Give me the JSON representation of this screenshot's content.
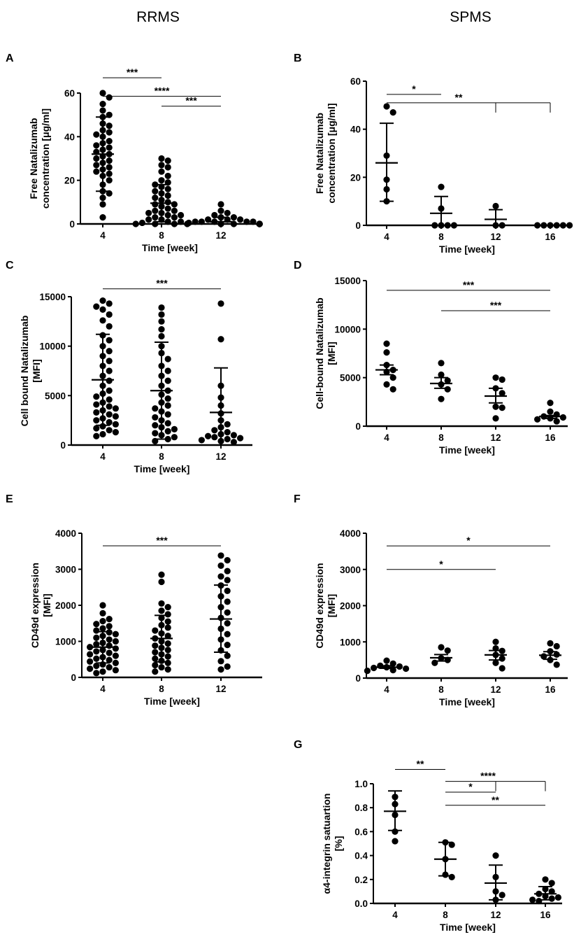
{
  "column_titles": {
    "left": "RRMS",
    "right": "SPMS"
  },
  "chart_data": [
    {
      "type": "scatter",
      "panel": "A",
      "cohort": "RRMS",
      "xlabel": "Time [week]",
      "ylabel": [
        "Free Natalizumab",
        "concentration [μg/ml]"
      ],
      "categories": [
        "4",
        "8",
        "12"
      ],
      "ylim": [
        0,
        60
      ],
      "yticks": [
        0,
        20,
        40,
        60
      ],
      "groups": [
        {
          "category": "4",
          "mean": 32,
          "sd_low": 15,
          "sd_high": 49,
          "points": [
            60,
            58,
            55,
            52,
            50,
            49,
            46,
            45,
            43,
            42,
            41,
            40,
            38,
            37,
            36,
            35,
            34,
            33,
            32,
            31,
            30,
            29,
            28,
            27,
            26,
            25,
            24,
            23,
            22,
            20,
            18,
            15,
            14,
            12,
            9,
            3
          ]
        },
        {
          "category": "8",
          "mean": 9.5,
          "sd_low": 1,
          "sd_high": 18,
          "points": [
            30,
            29,
            27,
            26,
            24,
            22,
            20,
            19,
            18,
            17,
            16,
            15,
            14,
            13,
            12,
            11,
            10,
            9,
            9,
            8,
            7,
            6,
            6,
            5,
            5,
            4,
            4,
            3,
            3,
            2,
            2,
            1,
            1,
            0.5,
            0,
            0,
            0,
            0
          ]
        },
        {
          "category": "12",
          "mean": 1,
          "sd_low": 0,
          "sd_high": 3,
          "points": [
            9,
            6,
            5,
            4,
            3,
            3,
            2,
            2,
            2,
            1,
            1,
            1,
            1,
            1,
            0.5,
            0,
            0,
            0,
            0,
            0,
            0,
            0,
            0,
            0,
            0
          ]
        }
      ],
      "significance": [
        {
          "from": "4",
          "to": "8",
          "label": "***",
          "y": 67
        },
        {
          "from": "4",
          "to": "12",
          "label": "****",
          "y": 58.5
        },
        {
          "from": "8",
          "to": "12",
          "label": "***",
          "y": 54
        }
      ]
    },
    {
      "type": "scatter",
      "panel": "B",
      "cohort": "SPMS",
      "xlabel": "Time [week]",
      "ylabel": [
        "Free Natalizumab",
        "concentration [μg/ml]"
      ],
      "categories": [
        "4",
        "8",
        "12",
        "16"
      ],
      "ylim": [
        0,
        60
      ],
      "yticks": [
        0,
        20,
        40,
        60
      ],
      "groups": [
        {
          "category": "4",
          "mean": 26,
          "sd_low": 10,
          "sd_high": 42.5,
          "points": [
            49.5,
            47,
            29,
            19,
            15,
            10
          ]
        },
        {
          "category": "8",
          "mean": 5,
          "sd_low": 0,
          "sd_high": 12,
          "points": [
            16,
            7,
            0,
            0,
            0,
            0
          ]
        },
        {
          "category": "12",
          "mean": 2.5,
          "sd_low": 0,
          "sd_high": 6.5,
          "points": [
            8,
            0,
            0
          ]
        },
        {
          "category": "16",
          "mean": 0,
          "sd_low": 0,
          "sd_high": 0,
          "points": [
            0,
            0,
            0,
            0,
            0,
            0
          ]
        }
      ],
      "significance": [
        {
          "from": "4",
          "to": "8",
          "label": "*",
          "y": 54.5
        },
        {
          "from": "4",
          "to": [
            "12",
            "16"
          ],
          "label": "**",
          "y": 51
        }
      ]
    },
    {
      "type": "scatter",
      "panel": "C",
      "cohort": "RRMS",
      "xlabel": "Time [week]",
      "ylabel": [
        "Cell bound Natalizumab",
        "[MFI]"
      ],
      "categories": [
        "4",
        "8",
        "12"
      ],
      "ylim": [
        0,
        15000
      ],
      "yticks": [
        0,
        5000,
        10000,
        15000
      ],
      "groups": [
        {
          "category": "4",
          "mean": 6600,
          "sd_low": 2000,
          "sd_high": 11200,
          "points": [
            14600,
            14300,
            14000,
            13700,
            13200,
            12600,
            12000,
            11100,
            10600,
            10000,
            9500,
            9000,
            8500,
            8000,
            7500,
            7000,
            6500,
            6000,
            5500,
            5200,
            4900,
            4600,
            4300,
            4100,
            3900,
            3700,
            3500,
            3300,
            3100,
            2900,
            2700,
            2500,
            2300,
            2100,
            1900,
            1700,
            1500,
            1300,
            1100,
            900
          ]
        },
        {
          "category": "8",
          "mean": 5500,
          "sd_low": 600,
          "sd_high": 10400,
          "points": [
            13900,
            13200,
            12500,
            11700,
            11000,
            10000,
            9300,
            8700,
            8000,
            7500,
            7000,
            6500,
            6000,
            5500,
            5100,
            4700,
            4300,
            4000,
            3700,
            3400,
            3100,
            2800,
            2500,
            2200,
            2000,
            1800,
            1600,
            1400,
            1200,
            1000,
            800,
            600,
            400
          ]
        },
        {
          "category": "12",
          "mean": 3300,
          "sd_low": 0,
          "sd_high": 7800,
          "points": [
            14300,
            10700,
            6000,
            4800,
            4000,
            3200,
            2500,
            2100,
            1800,
            1500,
            1300,
            1100,
            1000,
            900,
            800,
            700,
            600,
            500,
            400,
            300
          ]
        }
      ],
      "significance": [
        {
          "from": "4",
          "to": "12",
          "label": "***",
          "y": 15800
        }
      ]
    },
    {
      "type": "scatter",
      "panel": "D",
      "cohort": "SPMS",
      "xlabel": "Time [week]",
      "ylabel": [
        "Cell-bound Natalizumab",
        "[MFI]"
      ],
      "categories": [
        "4",
        "8",
        "12",
        "16"
      ],
      "ylim": [
        0,
        15000
      ],
      "yticks": [
        0,
        5000,
        10000,
        15000
      ],
      "groups": [
        {
          "category": "4",
          "mean": 5800,
          "sd_low": 5300,
          "sd_high": 6300,
          "points": [
            8500,
            7600,
            6300,
            5800,
            5600,
            5000,
            4300,
            3800
          ]
        },
        {
          "category": "8",
          "mean": 4400,
          "sd_low": 3900,
          "sd_high": 5000,
          "points": [
            6500,
            5300,
            4700,
            4300,
            3800,
            2800
          ]
        },
        {
          "category": "12",
          "mean": 3100,
          "sd_low": 2400,
          "sd_high": 3900,
          "points": [
            5000,
            4800,
            3900,
            3400,
            2000,
            1900,
            800
          ]
        },
        {
          "category": "16",
          "mean": 1000,
          "sd_low": 800,
          "sd_high": 1100,
          "points": [
            2400,
            1500,
            1200,
            1000,
            900,
            800,
            700,
            500
          ]
        }
      ],
      "significance": [
        {
          "from": "4",
          "to": "16",
          "label": "***",
          "y": 14000
        },
        {
          "from": "8",
          "to": "16",
          "label": "***",
          "y": 11900
        }
      ]
    },
    {
      "type": "scatter",
      "panel": "E",
      "cohort": "RRMS",
      "xlabel": "Time [week]",
      "ylabel": [
        "CD49d expression",
        "[MFI]"
      ],
      "categories": [
        "4",
        "8",
        "12"
      ],
      "ylim": [
        0,
        4000
      ],
      "yticks": [
        0,
        1000,
        2000,
        3000,
        4000
      ],
      "groups": [
        {
          "category": "4",
          "mean": 840,
          "sd_low": 400,
          "sd_high": 1270,
          "points": [
            2000,
            1780,
            1620,
            1560,
            1480,
            1420,
            1360,
            1300,
            1250,
            1200,
            1150,
            1100,
            1050,
            1000,
            960,
            920,
            880,
            840,
            800,
            760,
            720,
            680,
            640,
            600,
            560,
            520,
            480,
            440,
            400,
            360,
            320,
            280,
            240,
            200,
            160,
            120
          ]
        },
        {
          "category": "8",
          "mean": 1080,
          "sd_low": 430,
          "sd_high": 1720,
          "points": [
            2850,
            2650,
            2050,
            1950,
            1850,
            1750,
            1650,
            1550,
            1450,
            1380,
            1300,
            1220,
            1150,
            1080,
            1000,
            940,
            880,
            820,
            760,
            700,
            640,
            580,
            520,
            460,
            400,
            340,
            280,
            220,
            160
          ]
        },
        {
          "category": "12",
          "mean": 1620,
          "sd_low": 700,
          "sd_high": 2560,
          "points": [
            3380,
            3250,
            3100,
            2950,
            2800,
            2700,
            2550,
            2400,
            2250,
            2100,
            1950,
            1800,
            1650,
            1500,
            1350,
            1200,
            1050,
            900,
            750,
            600,
            450,
            300,
            220
          ]
        }
      ],
      "significance": [
        {
          "from": "4",
          "to": "12",
          "label": "***",
          "y": 3650
        }
      ]
    },
    {
      "type": "scatter",
      "panel": "F",
      "cohort": "SPMS",
      "xlabel": "Time [week]",
      "ylabel": [
        "CD49d expression",
        "[MFI]"
      ],
      "categories": [
        "4",
        "8",
        "12",
        "16"
      ],
      "ylim": [
        0,
        4000
      ],
      "yticks": [
        0,
        1000,
        2000,
        3000,
        4000
      ],
      "groups": [
        {
          "category": "4",
          "mean": 300,
          "sd_low": 270,
          "sd_high": 340,
          "points": [
            480,
            400,
            340,
            320,
            300,
            280,
            260,
            220,
            200
          ]
        },
        {
          "category": "8",
          "mean": 560,
          "sd_low": 470,
          "sd_high": 650,
          "points": [
            850,
            760,
            550,
            500,
            420
          ]
        },
        {
          "category": "12",
          "mean": 640,
          "sd_low": 500,
          "sd_high": 760,
          "points": [
            1000,
            820,
            750,
            640,
            540,
            420,
            270
          ]
        },
        {
          "category": "16",
          "mean": 630,
          "sd_low": 520,
          "sd_high": 730,
          "points": [
            960,
            880,
            740,
            650,
            600,
            500,
            370
          ]
        }
      ],
      "significance": [
        {
          "from": "4",
          "to": "16",
          "label": "*",
          "y": 3650
        },
        {
          "from": "4",
          "to": "12",
          "label": "*",
          "y": 3000
        }
      ]
    },
    {
      "type": "scatter",
      "panel": "G",
      "cohort": "SPMS",
      "xlabel": "Time [week]",
      "ylabel": [
        "α4-integrin satuartion",
        "[%]"
      ],
      "categories": [
        "4",
        "8",
        "12",
        "16"
      ],
      "ylim": [
        0,
        1.0
      ],
      "yticks": [
        "0.0",
        "0.2",
        "0.4",
        "0.6",
        "0.8",
        "1.0"
      ],
      "groups": [
        {
          "category": "4",
          "mean": 0.77,
          "sd_low": 0.61,
          "sd_high": 0.94,
          "points": [
            0.89,
            0.83,
            0.74,
            0.6,
            0.52
          ]
        },
        {
          "category": "8",
          "mean": 0.37,
          "sd_low": 0.23,
          "sd_high": 0.51,
          "points": [
            0.51,
            0.49,
            0.37,
            0.24,
            0.22
          ]
        },
        {
          "category": "12",
          "mean": 0.17,
          "sd_low": 0.03,
          "sd_high": 0.32,
          "points": [
            0.4,
            0.22,
            0.1,
            0.07,
            0.03
          ]
        },
        {
          "category": "16",
          "mean": 0.08,
          "sd_low": 0.03,
          "sd_high": 0.14,
          "points": [
            0.2,
            0.17,
            0.12,
            0.1,
            0.08,
            0.06,
            0.05,
            0.04,
            0.03,
            0.02
          ]
        }
      ],
      "significance": [
        {
          "from": "4",
          "to": "8",
          "label": "**",
          "y": 1.12
        },
        {
          "from": "8",
          "to": [
            "12",
            "16"
          ],
          "label": "****",
          "y": 1.02
        },
        {
          "from": "8",
          "to": "12",
          "label": "*",
          "y": 0.93
        },
        {
          "from": "8",
          "to": "16",
          "label": "**",
          "y": 0.82
        }
      ]
    }
  ]
}
